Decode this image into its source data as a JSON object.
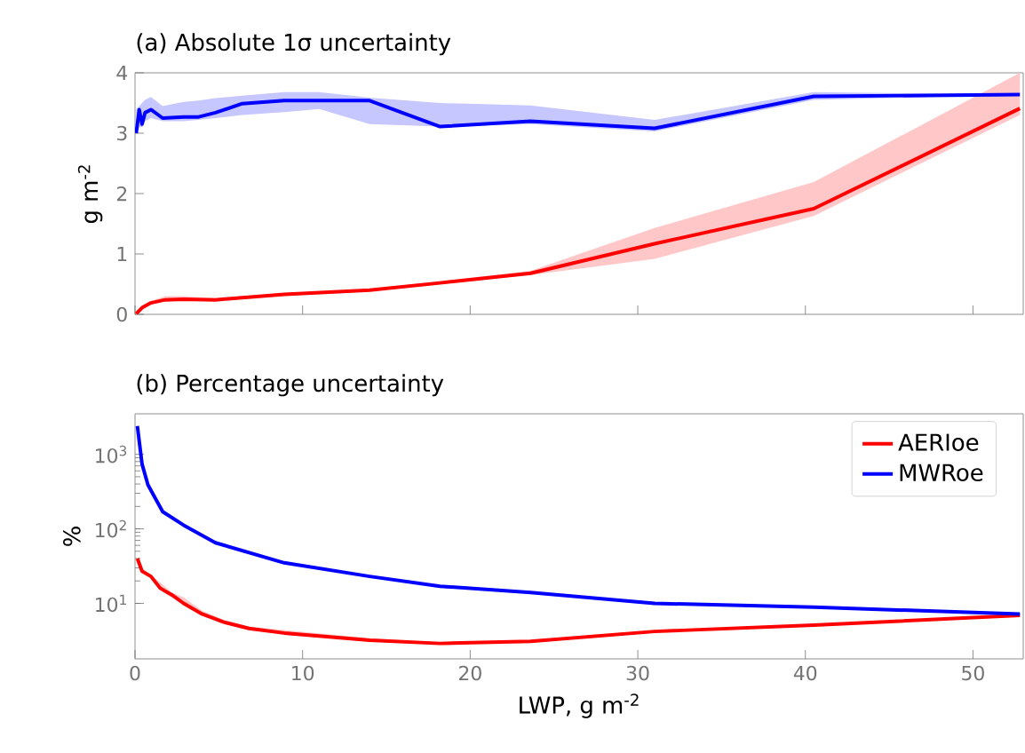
{
  "chart_data": [
    {
      "type": "line",
      "title": "(a) Absolute 1σ uncertainty",
      "ylabel": "g m$^{-2}$",
      "xlim": [
        0,
        53
      ],
      "xticks": [
        0,
        10,
        20,
        30,
        40,
        50
      ],
      "ylim": [
        0,
        4
      ],
      "yticks": [
        0,
        1,
        2,
        3,
        4
      ],
      "tick_labels": "y",
      "series": [
        {
          "color": "#0000ff",
          "x": [
            0.07,
            0.25,
            0.42,
            0.6,
            0.95,
            1.65,
            2.9,
            3.8,
            4.8,
            6.4,
            8.9,
            11,
            14,
            18.2,
            23.6,
            31,
            40.5,
            52.8
          ],
          "values": [
            3.0,
            3.39,
            3.15,
            3.34,
            3.39,
            3.25,
            3.27,
            3.27,
            3.34,
            3.49,
            3.54,
            3.54,
            3.54,
            3.11,
            3.2,
            3.08,
            3.61,
            3.64
          ],
          "lower": [
            3.0,
            3.1,
            3.1,
            3.2,
            3.25,
            3.2,
            3.2,
            3.22,
            3.25,
            3.3,
            3.35,
            3.4,
            3.15,
            3.11,
            3.15,
            3.03,
            3.55,
            3.64
          ],
          "upper": [
            3.4,
            3.45,
            3.5,
            3.55,
            3.6,
            3.45,
            3.52,
            3.54,
            3.58,
            3.62,
            3.68,
            3.68,
            3.59,
            3.5,
            3.46,
            3.22,
            3.68,
            3.64
          ]
        },
        {
          "color": "#ff0000",
          "x": [
            0.07,
            0.42,
            0.95,
            1.8,
            2.9,
            4.8,
            8.9,
            14,
            18.2,
            23.6,
            31,
            40.5,
            52.8
          ],
          "values": [
            0.01,
            0.11,
            0.19,
            0.24,
            0.25,
            0.24,
            0.33,
            0.4,
            0.52,
            0.68,
            1.17,
            1.75,
            3.41
          ],
          "lower": [
            0.0,
            0.09,
            0.17,
            0.22,
            0.23,
            0.22,
            0.31,
            0.38,
            0.5,
            0.65,
            0.92,
            1.63,
            3.3
          ],
          "upper": [
            0.02,
            0.14,
            0.22,
            0.3,
            0.3,
            0.27,
            0.35,
            0.42,
            0.55,
            0.72,
            1.43,
            2.19,
            4.0
          ]
        }
      ]
    },
    {
      "type": "line",
      "title": "(b) Percentage uncertainty",
      "xlabel": "LWP, g m$^{-2}$",
      "ylabel": "%",
      "xlim": [
        0,
        53
      ],
      "xticks": [
        0,
        10,
        20,
        30,
        40,
        50
      ],
      "ylim": [
        1.8,
        3500
      ],
      "log": "y",
      "yticks": [
        {
          "value": 10,
          "label": "10$^{1}$"
        },
        {
          "value": 100,
          "label": "10$^{2}$"
        },
        {
          "value": 1000,
          "label": "10$^{3}$"
        }
      ],
      "legend": "top right",
      "series": [
        {
          "name": "AERIoe",
          "color": "#ff0000",
          "x": [
            0.14,
            0.42,
            0.95,
            1.5,
            2.2,
            2.9,
            4.0,
            5.3,
            6.8,
            8.9,
            14,
            18.2,
            23.6,
            31,
            40.5,
            52.8
          ],
          "values": [
            40,
            27,
            23,
            16,
            13,
            10,
            7.2,
            5.6,
            4.6,
            4.0,
            3.2,
            2.9,
            3.1,
            4.2,
            5.1,
            6.9
          ],
          "lower": [
            38,
            26,
            22,
            15,
            12,
            9.5,
            6.8,
            5.3,
            4.4,
            3.8,
            3.1,
            2.8,
            3.0,
            4.1,
            5.0,
            6.8
          ],
          "upper": [
            42,
            29,
            24,
            19,
            14,
            12,
            8.0,
            6.0,
            4.9,
            4.4,
            3.4,
            3.0,
            3.2,
            4.3,
            5.2,
            7.0
          ]
        },
        {
          "name": "MWRoe",
          "color": "#0000ff",
          "x": [
            0.14,
            0.42,
            0.77,
            1.65,
            2.9,
            4.8,
            8.9,
            14,
            18.2,
            23.6,
            31,
            40.5,
            52.8
          ],
          "values": [
            2400,
            740,
            390,
            170,
            112,
            65,
            35,
            23,
            17,
            14,
            10,
            8.9,
            7.2
          ]
        }
      ]
    }
  ]
}
